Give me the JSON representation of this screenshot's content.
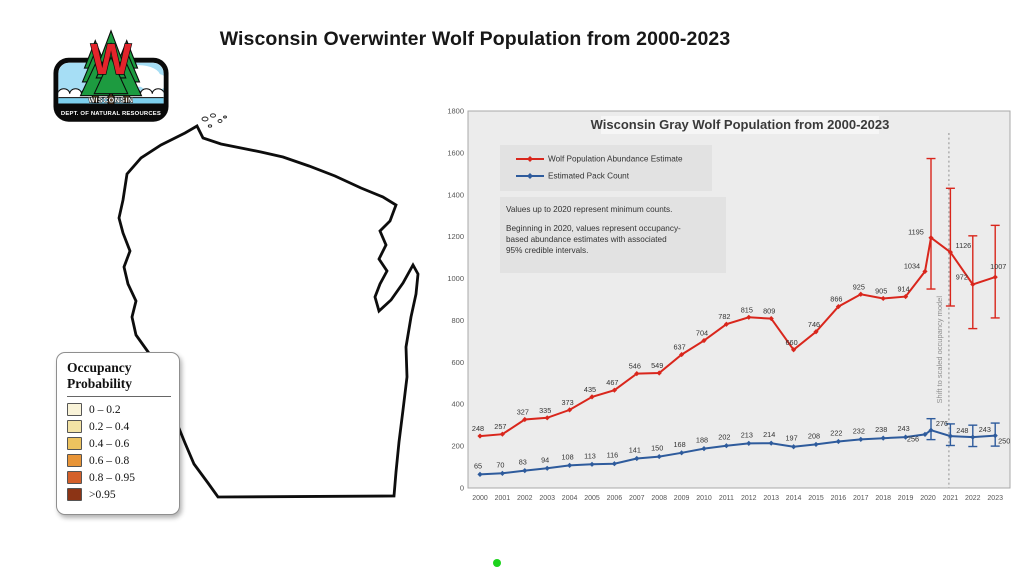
{
  "slide": {
    "title": "Wisconsin Overwinter Wolf Population from 2000-2023",
    "pointer_dot_color": "#1dd31d"
  },
  "logo": {
    "line1": "WISCONSIN",
    "line2": "DEPT. OF NATURAL RESOURCES",
    "colors": {
      "sky": "#a6def5",
      "water": "#7dd0ee",
      "tree": "#1d9b40",
      "w_letter": "#e3242b",
      "border": "#0a0a0a"
    }
  },
  "map": {
    "legend": {
      "title_line1": "Occupancy",
      "title_line2": "Probability",
      "classes": [
        {
          "label": "0 – 0.2",
          "color": "#F9F3D8"
        },
        {
          "label": "0.2 – 0.4",
          "color": "#F3E3A5"
        },
        {
          "label": "0.4 – 0.6",
          "color": "#EDC35F"
        },
        {
          "label": "0.6 – 0.8",
          "color": "#E79437"
        },
        {
          "label": "0.8 – 0.95",
          "color": "#D4602A"
        },
        {
          "label": ">0.95",
          "color": "#8C3415"
        }
      ]
    }
  },
  "chart_data": {
    "type": "line",
    "title": "Wisconsin Gray Wolf Population from 2000-2023",
    "x": [
      2000,
      2001,
      2002,
      2003,
      2004,
      2005,
      2006,
      2007,
      2008,
      2009,
      2010,
      2011,
      2012,
      2013,
      2014,
      2015,
      2016,
      2017,
      2018,
      2019,
      2020,
      2021,
      2022,
      2023
    ],
    "ylim": [
      0,
      1800
    ],
    "yticks": [
      0,
      200,
      400,
      600,
      800,
      1000,
      1200,
      1400,
      1600,
      1800
    ],
    "grid": false,
    "legend_position": "top-left",
    "series": [
      {
        "name": "Wolf Population Abundance Estimate",
        "color": "#D9261C",
        "minimum_count_years_2000_2020": [
          248,
          257,
          327,
          335,
          373,
          435,
          467,
          546,
          549,
          637,
          704,
          782,
          815,
          809,
          660,
          746,
          866,
          925,
          905,
          914,
          1034
        ],
        "estimate_years": [
          2020,
          2021,
          2022,
          2023
        ],
        "estimate_values": [
          1195,
          1126,
          972,
          1007
        ],
        "ci_low": [
          950,
          869,
          761,
          812
        ],
        "ci_high": [
          1573,
          1431,
          1204,
          1254
        ]
      },
      {
        "name": "Estimated Pack Count",
        "color": "#2E5B9C",
        "minimum_count_years_2000_2020": [
          65,
          70,
          83,
          94,
          108,
          113,
          116,
          141,
          150,
          168,
          188,
          202,
          213,
          214,
          197,
          208,
          222,
          232,
          238,
          243,
          256
        ],
        "estimate_years": [
          2020,
          2021,
          2022,
          2023
        ],
        "estimate_values": [
          276,
          248,
          243,
          250
        ],
        "ci_low": [
          231,
          203,
          198,
          200
        ],
        "ci_high": [
          331,
          306,
          300,
          310
        ]
      }
    ],
    "note_lines": [
      "Values up to 2020 represent minimum counts.",
      "",
      "Beginning in 2020, values represent occupancy-",
      "based abundance estimates with associated",
      "95% credible intervals."
    ],
    "annotation": "Shift to scaled occupancy model"
  }
}
